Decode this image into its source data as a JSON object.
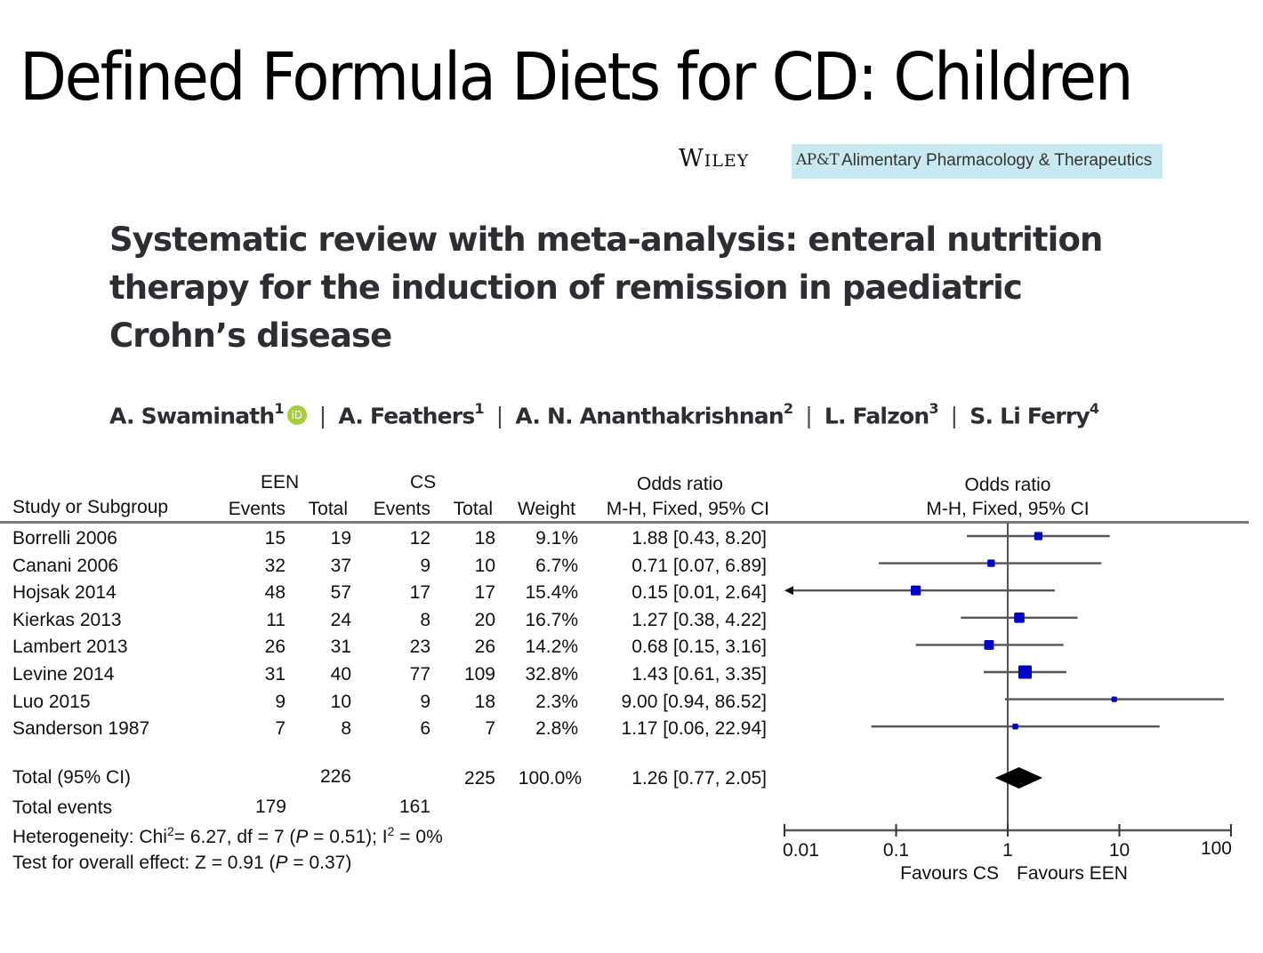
{
  "slide": {
    "title": "Defined Formula Diets for CD: Children"
  },
  "publisher": {
    "name": "Wiley",
    "journal_abbrev": "AP&T",
    "journal_name": "Alimentary Pharmacology & Therapeutics",
    "badge_color": "#c9e9f1"
  },
  "paper": {
    "title": "Systematic review with meta-analysis: enteral nutrition therapy for the induction of remission in paediatric Crohn’s disease",
    "authors": [
      {
        "name": "A. Swaminath",
        "affil": "1",
        "orcid": true
      },
      {
        "name": "A. Feathers",
        "affil": "1",
        "orcid": false
      },
      {
        "name": "A. N. Ananthakrishnan",
        "affil": "2",
        "orcid": false
      },
      {
        "name": "L. Falzon",
        "affil": "3",
        "orcid": false
      },
      {
        "name": "S. Li Ferry",
        "affil": "4",
        "orcid": false
      }
    ],
    "separator": "|",
    "orcid_label": "iD"
  },
  "table": {
    "group_headers": {
      "een": "EEN",
      "cs": "CS",
      "or": "Odds ratio"
    },
    "columns": {
      "study": "Study or Subgroup",
      "een_events": "Events",
      "een_total": "Total",
      "cs_events": "Events",
      "cs_total": "Total",
      "weight": "Weight",
      "or_ci": "M-H, Fixed, 95% CI"
    },
    "rows": [
      {
        "study": "Borrelli 2006",
        "een_events": "15",
        "een_total": "19",
        "cs_events": "12",
        "cs_total": "18",
        "weight": "9.1%",
        "or_ci": "1.88 [0.43, 8.20]"
      },
      {
        "study": "Canani 2006",
        "een_events": "32",
        "een_total": "37",
        "cs_events": "9",
        "cs_total": "10",
        "weight": "6.7%",
        "or_ci": "0.71 [0.07, 6.89]"
      },
      {
        "study": "Hojsak 2014",
        "een_events": "48",
        "een_total": "57",
        "cs_events": "17",
        "cs_total": "17",
        "weight": "15.4%",
        "or_ci": "0.15 [0.01, 2.64]"
      },
      {
        "study": "Kierkas 2013",
        "een_events": "11",
        "een_total": "24",
        "cs_events": "8",
        "cs_total": "20",
        "weight": "16.7%",
        "or_ci": "1.27 [0.38, 4.22]"
      },
      {
        "study": "Lambert 2013",
        "een_events": "26",
        "een_total": "31",
        "cs_events": "23",
        "cs_total": "26",
        "weight": "14.2%",
        "or_ci": "0.68 [0.15, 3.16]"
      },
      {
        "study": "Levine 2014",
        "een_events": "31",
        "een_total": "40",
        "cs_events": "77",
        "cs_total": "109",
        "weight": "32.8%",
        "or_ci": "1.43 [0.61, 3.35]"
      },
      {
        "study": "Luo 2015",
        "een_events": "9",
        "een_total": "10",
        "cs_events": "9",
        "cs_total": "18",
        "weight": "2.3%",
        "or_ci": "9.00 [0.94, 86.52]"
      },
      {
        "study": "Sanderson 1987",
        "een_events": "7",
        "een_total": "8",
        "cs_events": "6",
        "cs_total": "7",
        "weight": "2.8%",
        "or_ci": "1.17 [0.06, 22.94]"
      }
    ],
    "total": {
      "label": "Total (95% CI)",
      "een_total": "226",
      "cs_total": "225",
      "weight": "100.0%",
      "or_ci": "1.26 [0.77, 2.05]"
    },
    "total_events": {
      "label": "Total events",
      "een": "179",
      "cs": "161"
    },
    "heterogeneity": {
      "prefix": "Heterogeneity: Chi",
      "sup": "2",
      "mid": "= 6.27, df = 7 (",
      "p_italic": "P",
      "p_rest": " = 0.51); I",
      "i_sup": "2",
      "end": " = 0%"
    },
    "overall_effect": {
      "prefix": "Test for overall effect: Z = 0.91 (",
      "p_italic": "P",
      "end": " = 0.37)"
    }
  },
  "chart_data": {
    "type": "forest",
    "title": "Odds ratio",
    "subtitle": "M-H, Fixed, 95% CI",
    "x_scale": "log",
    "xlim": [
      0.01,
      100
    ],
    "x_ticks": [
      "0.01",
      "0.1",
      "1",
      "10",
      "100"
    ],
    "x_tick_values": [
      0.01,
      0.1,
      1,
      10,
      100
    ],
    "left_label": "Favours CS",
    "right_label": "Favours EEN",
    "reference_line": 1,
    "marker_color": "#0000cc",
    "studies": [
      {
        "name": "Borrelli 2006",
        "or": 1.88,
        "lo": 0.43,
        "hi": 8.2,
        "weight": 9.1
      },
      {
        "name": "Canani 2006",
        "or": 0.71,
        "lo": 0.07,
        "hi": 6.89,
        "weight": 6.7
      },
      {
        "name": "Hojsak 2014",
        "or": 0.15,
        "lo": 0.01,
        "hi": 2.64,
        "weight": 15.4,
        "arrow_left": true
      },
      {
        "name": "Kierkas 2013",
        "or": 1.27,
        "lo": 0.38,
        "hi": 4.22,
        "weight": 16.7
      },
      {
        "name": "Lambert 2013",
        "or": 0.68,
        "lo": 0.15,
        "hi": 3.16,
        "weight": 14.2
      },
      {
        "name": "Levine 2014",
        "or": 1.43,
        "lo": 0.61,
        "hi": 3.35,
        "weight": 32.8
      },
      {
        "name": "Luo 2015",
        "or": 9.0,
        "lo": 0.94,
        "hi": 86.52,
        "weight": 2.3
      },
      {
        "name": "Sanderson 1987",
        "or": 1.17,
        "lo": 0.06,
        "hi": 22.94,
        "weight": 2.8
      }
    ],
    "pooled": {
      "name": "Total (95% CI)",
      "or": 1.26,
      "lo": 0.77,
      "hi": 2.05
    }
  }
}
